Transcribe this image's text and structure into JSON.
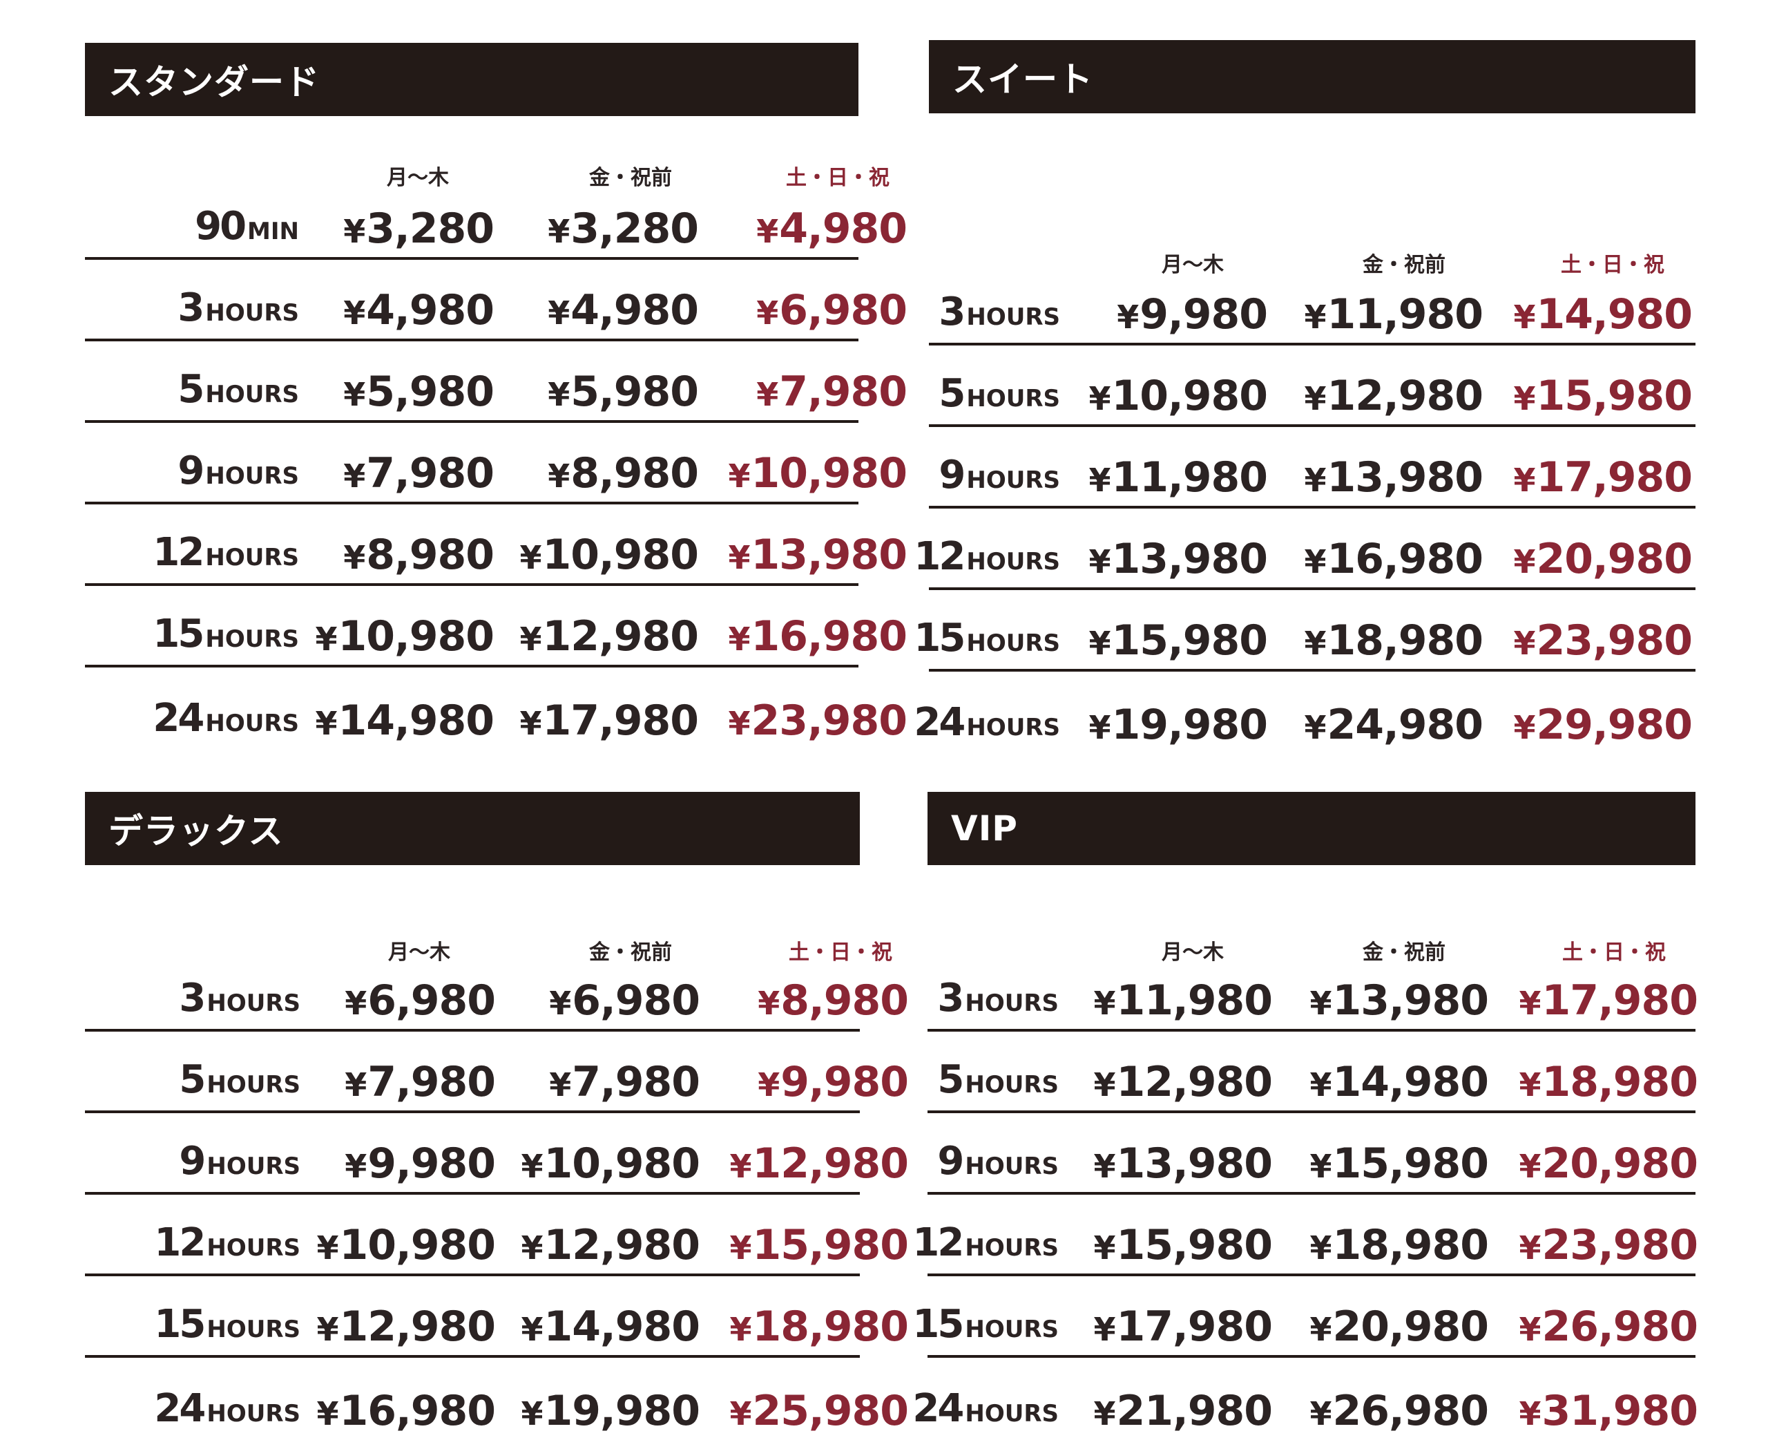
{
  "colors": {
    "banner": "#231a17",
    "text": "#2b2323",
    "weekend": "#8a2634"
  },
  "yen_symbol": "¥",
  "panels": [
    {
      "title": "スタンダード",
      "headers": [
        "月～木",
        "金・祝前",
        "土・日・祝"
      ],
      "rows": [
        {
          "num": "90",
          "unit": "MIN",
          "prices": [
            "3,280",
            "3,280",
            "4,980"
          ]
        },
        {
          "num": "3",
          "unit": "HOURS",
          "prices": [
            "4,980",
            "4,980",
            "6,980"
          ]
        },
        {
          "num": "5",
          "unit": "HOURS",
          "prices": [
            "5,980",
            "5,980",
            "7,980"
          ]
        },
        {
          "num": "9",
          "unit": "HOURS",
          "prices": [
            "7,980",
            "8,980",
            "10,980"
          ]
        },
        {
          "num": "12",
          "unit": "HOURS",
          "prices": [
            "8,980",
            "10,980",
            "13,980"
          ]
        },
        {
          "num": "15",
          "unit": "HOURS",
          "prices": [
            "10,980",
            "12,980",
            "16,980"
          ]
        },
        {
          "num": "24",
          "unit": "HOURS",
          "prices": [
            "14,980",
            "17,980",
            "23,980"
          ]
        }
      ]
    },
    {
      "title": "スイート",
      "headers": [
        "月～木",
        "金・祝前",
        "土・日・祝"
      ],
      "rows": [
        {
          "num": "3",
          "unit": "HOURS",
          "prices": [
            "9,980",
            "11,980",
            "14,980"
          ]
        },
        {
          "num": "5",
          "unit": "HOURS",
          "prices": [
            "10,980",
            "12,980",
            "15,980"
          ]
        },
        {
          "num": "9",
          "unit": "HOURS",
          "prices": [
            "11,980",
            "13,980",
            "17,980"
          ]
        },
        {
          "num": "12",
          "unit": "HOURS",
          "prices": [
            "13,980",
            "16,980",
            "20,980"
          ]
        },
        {
          "num": "15",
          "unit": "HOURS",
          "prices": [
            "15,980",
            "18,980",
            "23,980"
          ]
        },
        {
          "num": "24",
          "unit": "HOURS",
          "prices": [
            "19,980",
            "24,980",
            "29,980"
          ]
        }
      ]
    },
    {
      "title": "デラックス",
      "headers": [
        "月～木",
        "金・祝前",
        "土・日・祝"
      ],
      "rows": [
        {
          "num": "3",
          "unit": "HOURS",
          "prices": [
            "6,980",
            "6,980",
            "8,980"
          ]
        },
        {
          "num": "5",
          "unit": "HOURS",
          "prices": [
            "7,980",
            "7,980",
            "9,980"
          ]
        },
        {
          "num": "9",
          "unit": "HOURS",
          "prices": [
            "9,980",
            "10,980",
            "12,980"
          ]
        },
        {
          "num": "12",
          "unit": "HOURS",
          "prices": [
            "10,980",
            "12,980",
            "15,980"
          ]
        },
        {
          "num": "15",
          "unit": "HOURS",
          "prices": [
            "12,980",
            "14,980",
            "18,980"
          ]
        },
        {
          "num": "24",
          "unit": "HOURS",
          "prices": [
            "16,980",
            "19,980",
            "25,980"
          ]
        }
      ]
    },
    {
      "title": "VIP",
      "headers": [
        "月～木",
        "金・祝前",
        "土・日・祝"
      ],
      "rows": [
        {
          "num": "3",
          "unit": "HOURS",
          "prices": [
            "11,980",
            "13,980",
            "17,980"
          ]
        },
        {
          "num": "5",
          "unit": "HOURS",
          "prices": [
            "12,980",
            "14,980",
            "18,980"
          ]
        },
        {
          "num": "9",
          "unit": "HOURS",
          "prices": [
            "13,980",
            "15,980",
            "20,980"
          ]
        },
        {
          "num": "12",
          "unit": "HOURS",
          "prices": [
            "15,980",
            "18,980",
            "23,980"
          ]
        },
        {
          "num": "15",
          "unit": "HOURS",
          "prices": [
            "17,980",
            "20,980",
            "26,980"
          ]
        },
        {
          "num": "24",
          "unit": "HOURS",
          "prices": [
            "21,980",
            "26,980",
            "31,980"
          ]
        }
      ]
    }
  ]
}
